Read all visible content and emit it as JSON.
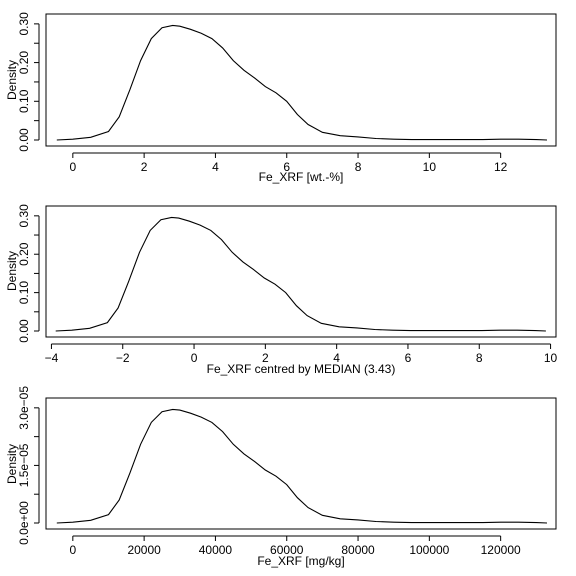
{
  "chart_data": [
    {
      "type": "line",
      "title": "",
      "xlabel": "Fe_XRF [wt.-%]",
      "ylabel": "Density",
      "xlim": [
        -0.5,
        13.3
      ],
      "ylim": [
        0,
        0.31
      ],
      "xticks": [
        0,
        2,
        4,
        6,
        8,
        10,
        12
      ],
      "xtick_labels": [
        "0",
        "2",
        "4",
        "6",
        "8",
        "10",
        "12"
      ],
      "yticks": [
        0.0,
        0.05,
        0.1,
        0.15,
        0.2,
        0.25,
        0.3
      ],
      "ytick_labels": [
        "0.00",
        "",
        "0.10",
        "",
        "0.20",
        "",
        "0.30"
      ],
      "grid": false,
      "series": [
        {
          "x": [
            -0.45,
            0.0,
            0.5,
            1.0,
            1.3,
            1.6,
            1.9,
            2.2,
            2.5,
            2.8,
            3.0,
            3.3,
            3.6,
            3.9,
            4.2,
            4.5,
            4.8,
            5.1,
            5.4,
            5.7,
            6.0,
            6.3,
            6.6,
            7.0,
            7.5,
            8.0,
            8.5,
            9.0,
            9.5,
            10.0,
            10.5,
            11.0,
            11.5,
            12.0,
            12.5,
            13.0,
            13.3
          ],
          "y": [
            0.0,
            0.002,
            0.007,
            0.022,
            0.06,
            0.13,
            0.205,
            0.262,
            0.29,
            0.296,
            0.294,
            0.286,
            0.276,
            0.262,
            0.238,
            0.205,
            0.18,
            0.16,
            0.138,
            0.122,
            0.1,
            0.066,
            0.04,
            0.02,
            0.011,
            0.008,
            0.004,
            0.002,
            0.001,
            0.001,
            0.001,
            0.001,
            0.001,
            0.002,
            0.002,
            0.001,
            0.0
          ]
        }
      ]
    },
    {
      "type": "line",
      "title": "",
      "xlabel": "Fe_XRF centred by MEDIAN (3.43)",
      "ylabel": "Density",
      "xlim": [
        -3.9,
        9.9
      ],
      "ylim": [
        0,
        0.31
      ],
      "xticks": [
        -4,
        -2,
        0,
        2,
        4,
        6,
        8,
        10
      ],
      "xtick_labels": [
        "−4",
        "−2",
        "0",
        "2",
        "4",
        "6",
        "8",
        "10"
      ],
      "yticks": [
        0.0,
        0.05,
        0.1,
        0.15,
        0.2,
        0.25,
        0.3
      ],
      "ytick_labels": [
        "0.00",
        "",
        "0.10",
        "",
        "0.20",
        "",
        "0.30"
      ],
      "grid": false,
      "series": [
        {
          "x": [
            -3.88,
            -3.43,
            -2.93,
            -2.43,
            -2.13,
            -1.83,
            -1.53,
            -1.23,
            -0.93,
            -0.63,
            -0.43,
            -0.13,
            0.17,
            0.47,
            0.77,
            1.07,
            1.37,
            1.67,
            1.97,
            2.27,
            2.57,
            2.87,
            3.17,
            3.57,
            4.07,
            4.57,
            5.07,
            5.57,
            6.07,
            6.57,
            7.07,
            7.57,
            8.07,
            8.57,
            9.07,
            9.57,
            9.87
          ],
          "y": [
            0.0,
            0.002,
            0.007,
            0.022,
            0.06,
            0.13,
            0.205,
            0.262,
            0.29,
            0.296,
            0.294,
            0.286,
            0.276,
            0.262,
            0.238,
            0.205,
            0.18,
            0.16,
            0.138,
            0.122,
            0.1,
            0.066,
            0.04,
            0.02,
            0.011,
            0.008,
            0.004,
            0.002,
            0.001,
            0.001,
            0.001,
            0.001,
            0.001,
            0.002,
            0.002,
            0.001,
            0.0
          ]
        }
      ]
    },
    {
      "type": "line",
      "title": "",
      "xlabel": "Fe_XRF [mg/kg]",
      "ylabel": "Density",
      "xlim": [
        -5000,
        133000
      ],
      "ylim": [
        0,
        3.1e-05
      ],
      "xticks": [
        0,
        20000,
        40000,
        60000,
        80000,
        100000,
        120000
      ],
      "xtick_labels": [
        "0",
        "20000",
        "40000",
        "60000",
        "80000",
        "100000",
        "120000"
      ],
      "yticks": [
        0.0,
        1.5e-05,
        3e-05
      ],
      "ytick_labels": [
        "0.0e+00",
        "1.5e−05",
        "3.0e−05"
      ],
      "yminor_ticks": [
        7.5e-06,
        2.25e-05
      ],
      "grid": false,
      "series": [
        {
          "x": [
            -4500,
            0,
            5000,
            10000,
            13000,
            16000,
            19000,
            22000,
            25000,
            28000,
            30000,
            33000,
            36000,
            39000,
            42000,
            45000,
            48000,
            51000,
            54000,
            57000,
            60000,
            63000,
            66000,
            70000,
            75000,
            80000,
            85000,
            90000,
            95000,
            100000,
            105000,
            110000,
            115000,
            120000,
            125000,
            130000,
            133000
          ],
          "y": [
            0.0,
            2e-07,
            7e-07,
            2.2e-06,
            6e-06,
            1.3e-05,
            2.05e-05,
            2.62e-05,
            2.9e-05,
            2.96e-05,
            2.94e-05,
            2.86e-05,
            2.76e-05,
            2.62e-05,
            2.38e-05,
            2.05e-05,
            1.8e-05,
            1.6e-05,
            1.38e-05,
            1.22e-05,
            1e-05,
            6.6e-06,
            4e-06,
            2e-06,
            1.1e-06,
            8e-07,
            4e-07,
            2e-07,
            1e-07,
            1e-07,
            1e-07,
            1e-07,
            1e-07,
            2e-07,
            2e-07,
            1e-07,
            0.0
          ]
        }
      ]
    }
  ],
  "colors": {
    "line": "#000000",
    "frame": "#000000",
    "background": "#ffffff"
  }
}
